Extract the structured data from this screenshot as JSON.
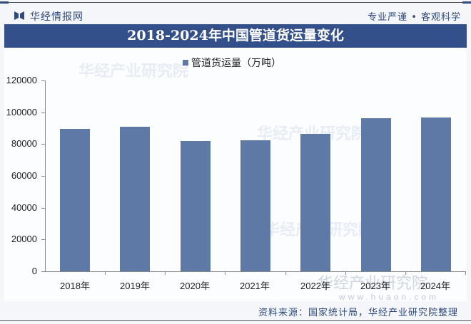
{
  "header": {
    "brand": "华经情报网",
    "slogan": "专业严谨 • 客观科学"
  },
  "title": "2018-2024年中国管道货运量变化",
  "legend": {
    "label": "管道货运量（万吨）",
    "color": "#5f79a6"
  },
  "y_ticks": [
    "120000",
    "100000",
    "80000",
    "60000",
    "40000",
    "20000",
    "0"
  ],
  "x_labels": [
    "2018年",
    "2019年",
    "2020年",
    "2021年",
    "2022年",
    "2023年",
    "2024年"
  ],
  "watermark": {
    "text": "华经产业研究院",
    "url": "www.huaon.com"
  },
  "source": "资料来源：国家统计局，华经产业研究院整理",
  "chart_data": {
    "type": "bar",
    "title": "2018-2024年中国管道货运量变化",
    "categories": [
      "2018年",
      "2019年",
      "2020年",
      "2021年",
      "2022年",
      "2023年",
      "2024年"
    ],
    "series": [
      {
        "name": "管道货运量（万吨）",
        "values": [
          89500,
          91000,
          82000,
          82400,
          86400,
          96300,
          96700
        ]
      }
    ],
    "xlabel": "",
    "ylabel": "",
    "ylim": [
      0,
      120000
    ],
    "yticks": [
      0,
      20000,
      40000,
      60000,
      80000,
      100000,
      120000
    ],
    "grid": false,
    "legend_position": "top",
    "bar_color": "#5f79a6"
  }
}
